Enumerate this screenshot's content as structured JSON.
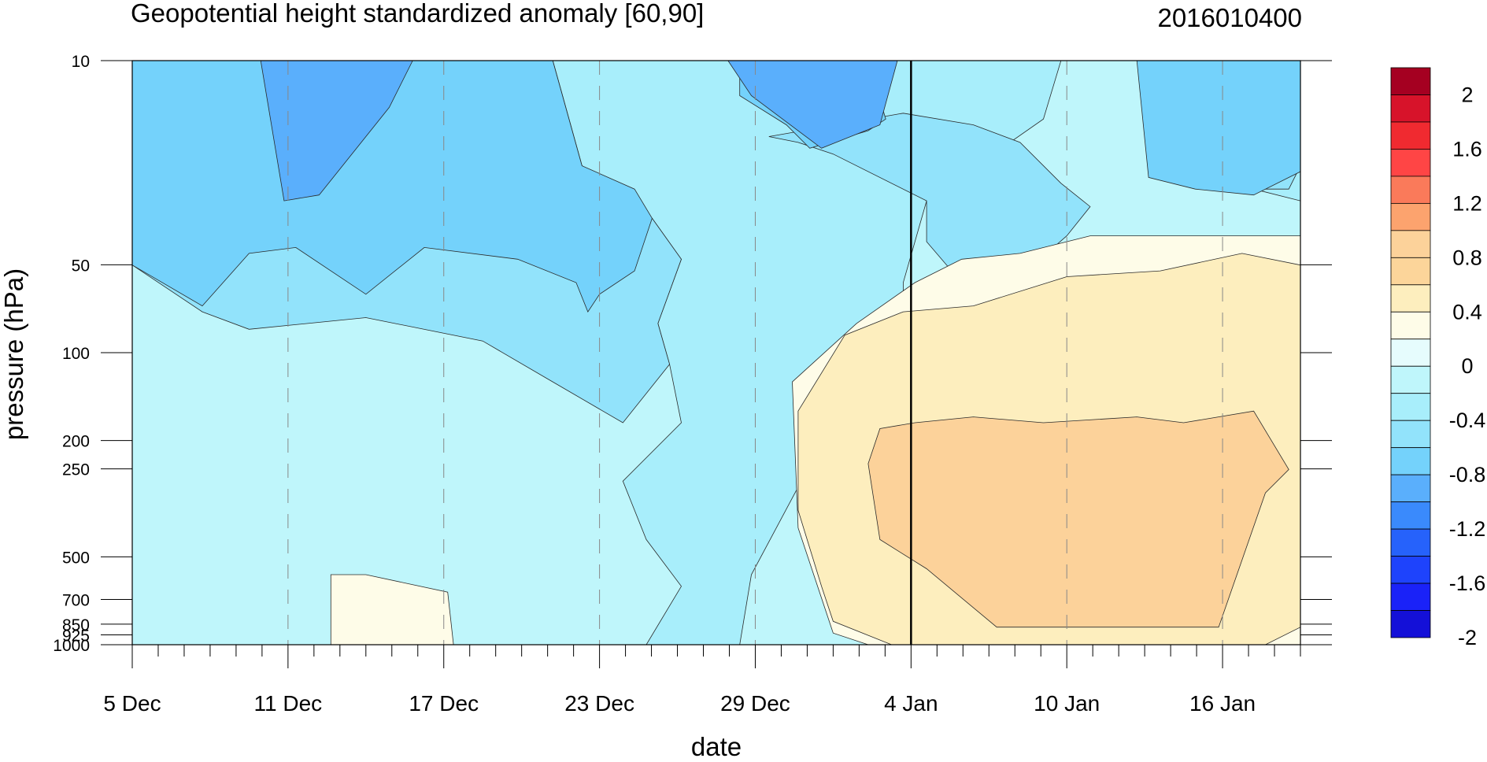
{
  "chart_data": {
    "type": "heatmap",
    "title": "Geopotential height standardized anomaly [60,90]",
    "right_title": "2016010400",
    "xlabel": "date",
    "ylabel": "pressure (hPa)",
    "x_ticks": [
      {
        "label": "5 Dec",
        "day": 0
      },
      {
        "label": "11 Dec",
        "day": 6
      },
      {
        "label": "17 Dec",
        "day": 12
      },
      {
        "label": "23 Dec",
        "day": 18
      },
      {
        "label": "29 Dec",
        "day": 24
      },
      {
        "label": "4 Jan",
        "day": 30
      },
      {
        "label": "10 Jan",
        "day": 36
      },
      {
        "label": "16 Jan",
        "day": 42
      }
    ],
    "x_range_days": [
      0,
      45
    ],
    "current_date_day": 30,
    "y_ticks": [
      {
        "label": "10",
        "p": 10
      },
      {
        "label": "50",
        "p": 50
      },
      {
        "label": "100",
        "p": 100
      },
      {
        "label": "200",
        "p": 200
      },
      {
        "label": "250",
        "p": 250
      },
      {
        "label": "500",
        "p": 500
      },
      {
        "label": "700",
        "p": 700
      },
      {
        "label": "850",
        "p": 850
      },
      {
        "label": "925",
        "p": 925
      },
      {
        "label": "1000",
        "p": 1000
      }
    ],
    "y_scale": "log",
    "y_range_hpa": [
      10,
      1000
    ],
    "y_inverted": true,
    "colorbar": {
      "labels": [
        "2",
        "1.6",
        "1.2",
        "0.8",
        "0.4",
        "0",
        "-0.4",
        "-0.8",
        "-1.2",
        "-1.6",
        "-2"
      ],
      "colors": [
        "#a50021",
        "#d7132a",
        "#f02a30",
        "#ff4545",
        "#fa7a5a",
        "#fca36e",
        "#fcd29a",
        "#fcd59a",
        "#fdeebe",
        "#fefce8",
        "#e6fcfd",
        "#bff6fb",
        "#a8eefb",
        "#92e3fb",
        "#74d2fb",
        "#5aaffc",
        "#3a8afc",
        "#2662fb",
        "#1e43fc",
        "#1a22f8",
        "#1410d8"
      ]
    },
    "fields": [
      {
        "name": "base",
        "color": "#bff6fb"
      },
      {
        "name": "lower_left_blue",
        "color": "#a8eefb"
      },
      {
        "name": "upper_left_blue",
        "color": "#92e3fb"
      },
      {
        "name": "mid_left_blue",
        "color": "#74d2fb"
      },
      {
        "name": "deep_blue_top",
        "color": "#5aaffc"
      },
      {
        "name": "warm_light",
        "color": "#fefce8"
      },
      {
        "name": "warm_mid",
        "color": "#fdeebe"
      },
      {
        "name": "warm_core",
        "color": "#fcd29a"
      }
    ]
  }
}
